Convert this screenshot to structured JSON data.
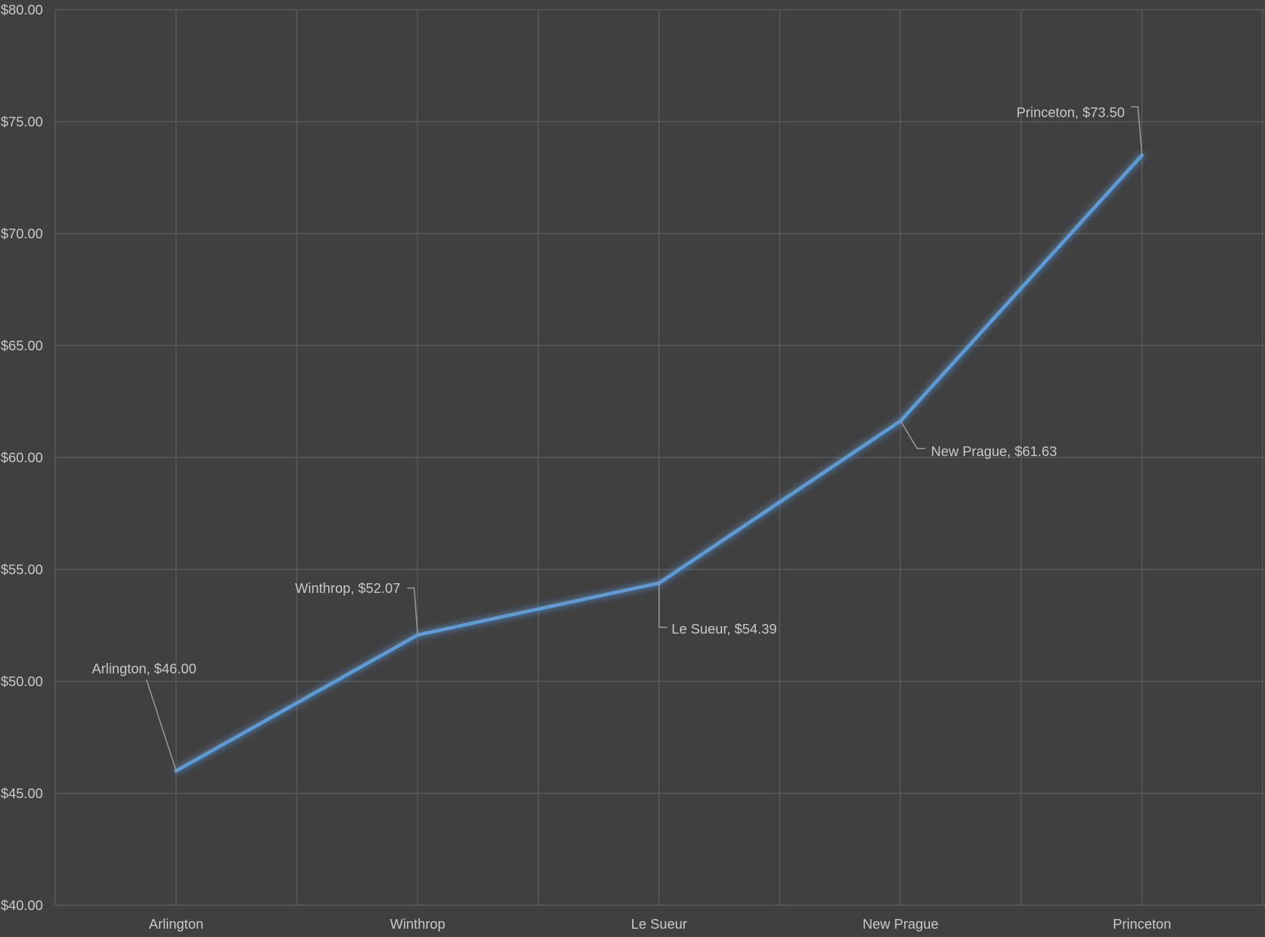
{
  "chart_data": {
    "type": "line",
    "categories": [
      "Arlington",
      "Winthrop",
      "Le Sueur",
      "New Prague",
      "Princeton"
    ],
    "values": [
      46.0,
      52.07,
      54.39,
      61.63,
      73.5
    ],
    "data_labels": [
      "Arlington, $46.00",
      "Winthrop, $52.07",
      "Le Sueur, $54.39",
      "New Prague, $61.63",
      "Princeton, $73.50"
    ],
    "y_ticks": [
      "$40.00",
      "$45.00",
      "$50.00",
      "$55.00",
      "$60.00",
      "$65.00",
      "$70.00",
      "$75.00",
      "$80.00"
    ],
    "ylim": [
      40,
      80
    ],
    "grid": true,
    "title": "",
    "xlabel": "",
    "ylabel": "",
    "colors": {
      "background": "#404040",
      "line": "#5b9bd5",
      "grid": "#5a5a5a",
      "text": "#c8c8c8"
    }
  }
}
